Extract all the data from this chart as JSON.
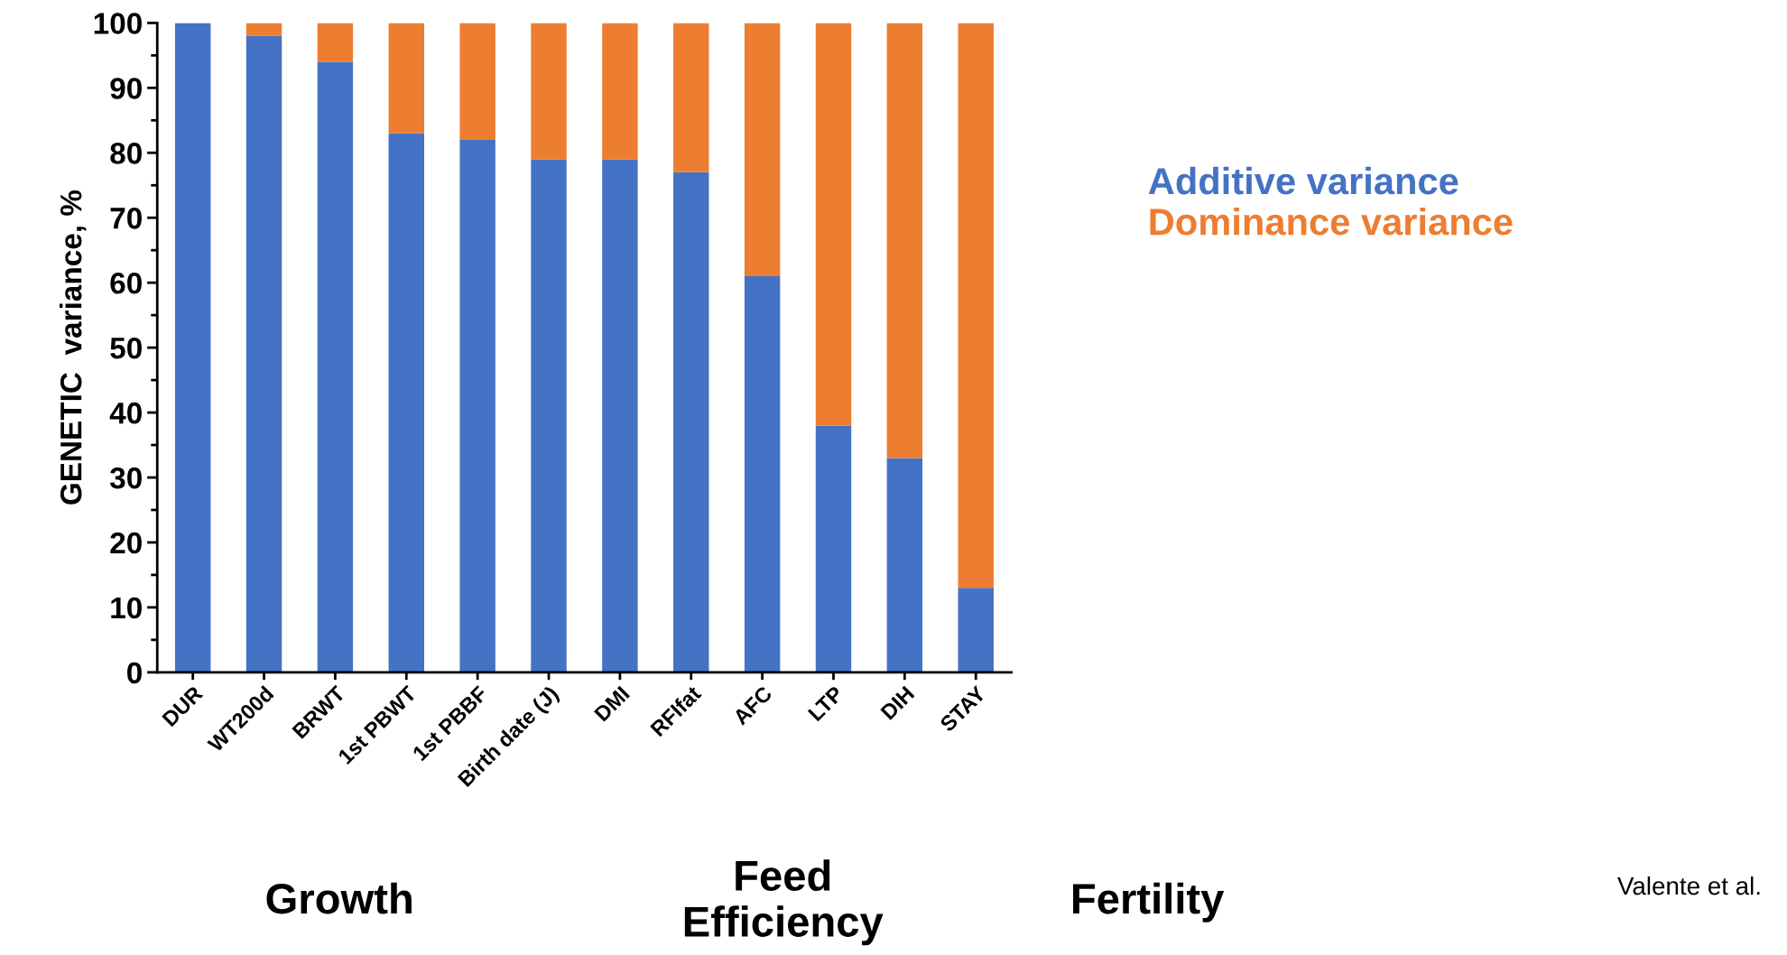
{
  "chart_data": {
    "type": "bar",
    "stacked": true,
    "ylabel": "GENETIC  variance, %",
    "categories": [
      "DUR",
      "WT200d",
      "BRWT",
      "1st PBWT",
      "1st PBBF",
      "Birth date (J)",
      "DMI",
      "RFIfat",
      "AFC",
      "LTP",
      "DIH",
      "STAY"
    ],
    "series": [
      {
        "name": "Additive variance",
        "color": "#4472c4",
        "values": [
          100,
          98,
          94,
          83,
          82,
          79,
          79,
          77,
          61,
          38,
          33,
          13
        ]
      },
      {
        "name": "Dominance variance",
        "color": "#ed7d31",
        "values": [
          0,
          2,
          6,
          17,
          18,
          21,
          21,
          23,
          39,
          62,
          67,
          87
        ]
      }
    ],
    "ylim": [
      0,
      100
    ],
    "yticks": [
      0,
      10,
      20,
      30,
      40,
      50,
      60,
      70,
      80,
      90,
      100
    ],
    "grid": false,
    "legend": "right",
    "annotations": [
      "Growth",
      "Feed\nEfficiency",
      "Fertility",
      "Valente et al."
    ]
  }
}
